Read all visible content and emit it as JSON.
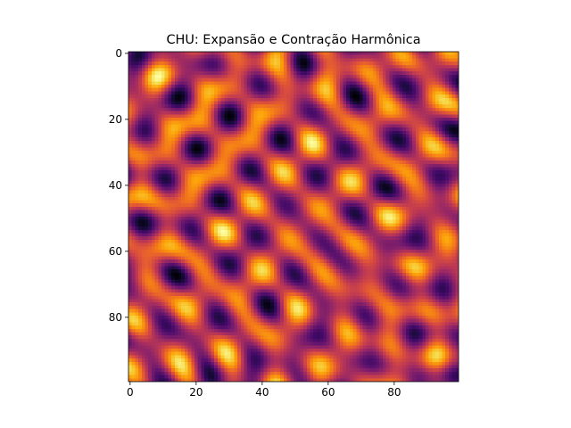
{
  "chart_data": {
    "type": "heatmap",
    "title": "CHU: Expansão e Contração Harmônica",
    "xlabel": "",
    "ylabel": "",
    "colormap": "inferno",
    "grid_shape": [
      100,
      100
    ],
    "xlim": [
      -0.5,
      99.5
    ],
    "ylim": [
      99.5,
      -0.5
    ],
    "x_ticks": [
      0,
      20,
      40,
      60,
      80
    ],
    "y_ticks": [
      0,
      20,
      40,
      60,
      80
    ],
    "grid": false,
    "legend": "none",
    "colors": {
      "axes": "#000000",
      "background": "#ffffff"
    }
  }
}
